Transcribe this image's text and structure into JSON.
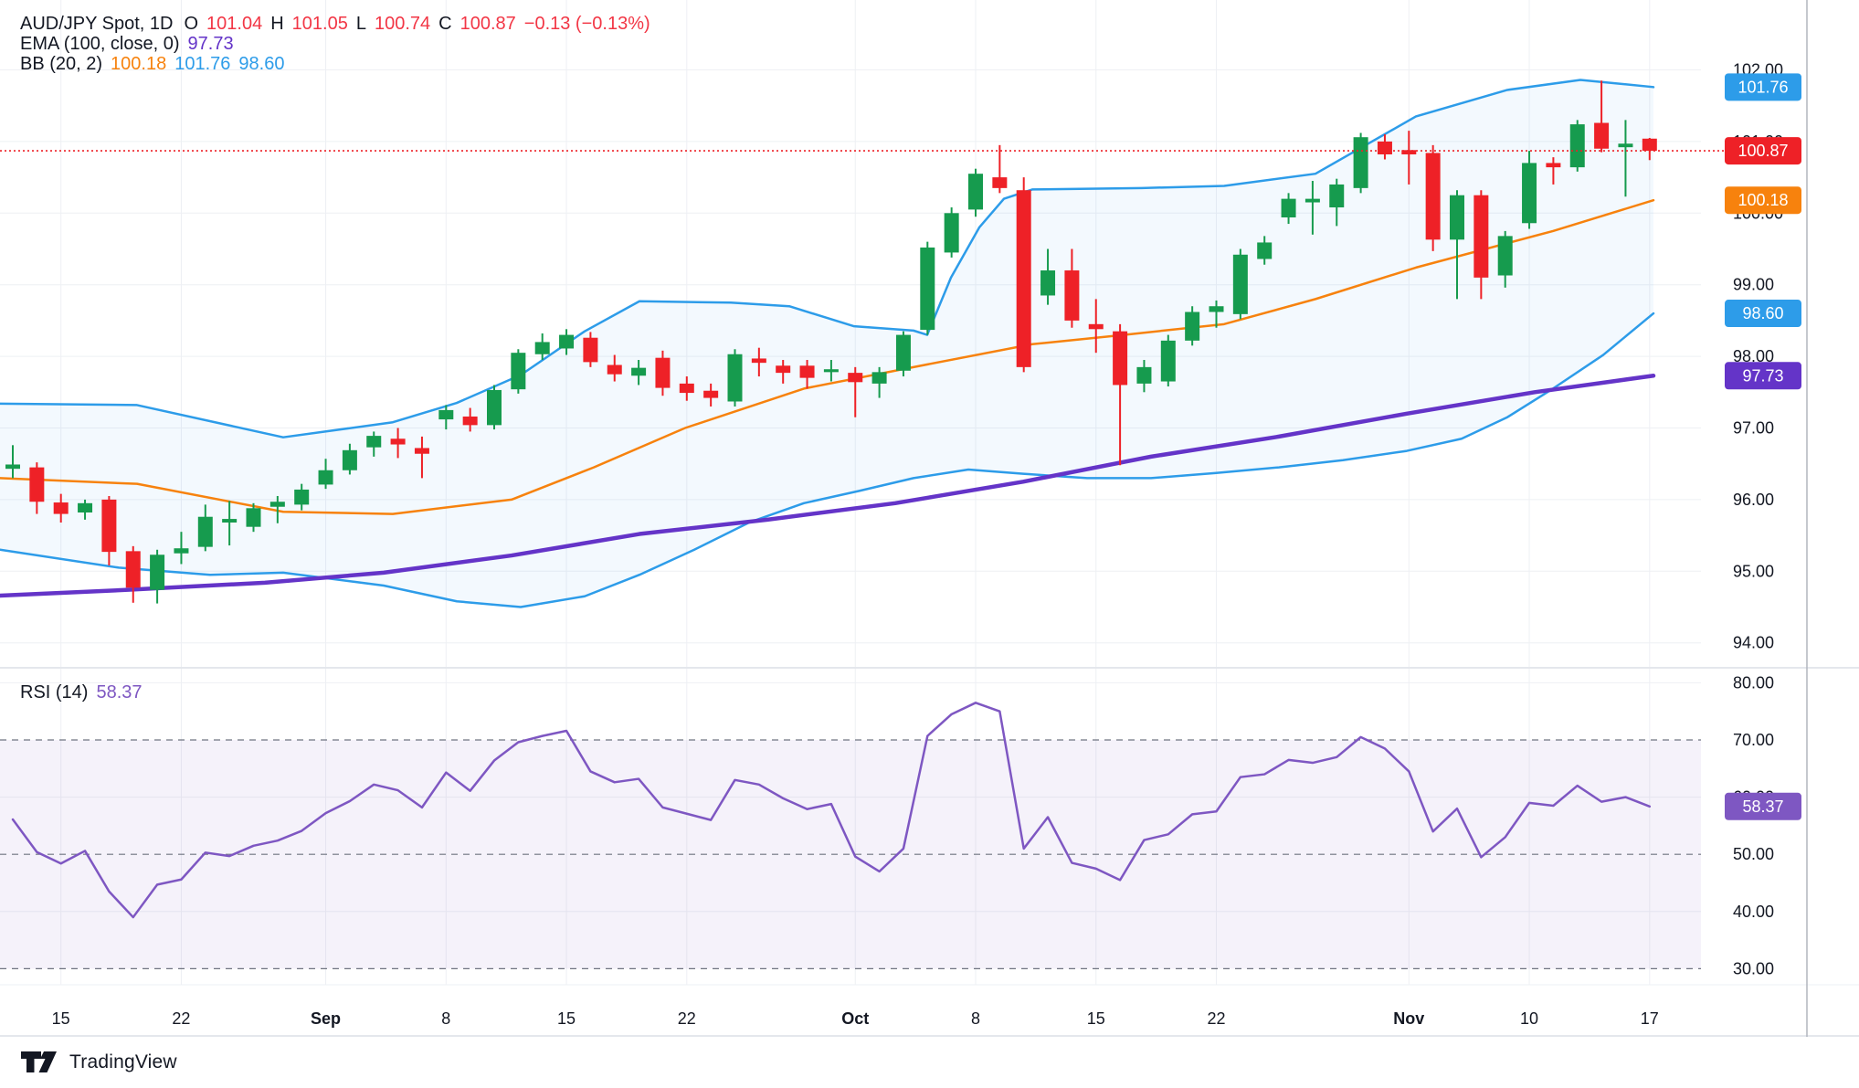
{
  "header": {
    "symbol_line": [
      {
        "text": "AUD/JPY Spot, 1D",
        "color": "#131722",
        "cls": "sym"
      },
      {
        "text": "O",
        "color": "#131722"
      },
      {
        "text": "101.04",
        "color": "#f23645"
      },
      {
        "text": "H",
        "color": "#131722"
      },
      {
        "text": "101.05",
        "color": "#f23645"
      },
      {
        "text": "L",
        "color": "#131722"
      },
      {
        "text": "100.74",
        "color": "#f23645"
      },
      {
        "text": "C",
        "color": "#131722"
      },
      {
        "text": "100.87",
        "color": "#f23645"
      },
      {
        "text": "−0.13 (−0.13%)",
        "color": "#f23645"
      }
    ],
    "ema_line": [
      {
        "text": "EMA (100, close, 0)",
        "color": "#131722"
      },
      {
        "text": "97.73",
        "color": "#6434c8"
      }
    ],
    "bb_line": [
      {
        "text": "BB (20, 2)",
        "color": "#131722"
      },
      {
        "text": "100.18",
        "color": "#f7820d"
      },
      {
        "text": "101.76",
        "color": "#2d9ce9"
      },
      {
        "text": "98.60",
        "color": "#2d9ce9"
      }
    ],
    "rsi_line": [
      {
        "text": "RSI (14)",
        "color": "#131722"
      },
      {
        "text": "58.37",
        "color": "#7e57c2"
      }
    ]
  },
  "price_axis": {
    "ticks": [
      {
        "label": "102.00",
        "value": 102
      },
      {
        "label": "101.00",
        "value": 101
      },
      {
        "label": "100.00",
        "value": 100
      },
      {
        "label": "99.00",
        "value": 99
      },
      {
        "label": "98.00",
        "value": 98
      },
      {
        "label": "97.00",
        "value": 97
      },
      {
        "label": "96.00",
        "value": 96
      },
      {
        "label": "95.00",
        "value": 95
      },
      {
        "label": "94.00",
        "value": 94
      }
    ],
    "badges": [
      {
        "label": "101.76",
        "value": 101.76,
        "color": "#2d9ce9",
        "name": "bb-upper-badge"
      },
      {
        "label": "100.87",
        "value": 100.87,
        "color": "#ee2127",
        "name": "last-price-badge"
      },
      {
        "label": "100.18",
        "value": 100.18,
        "color": "#f7820d",
        "name": "bb-middle-badge"
      },
      {
        "label": "98.60",
        "value": 98.6,
        "color": "#2d9ce9",
        "name": "bb-lower-badge"
      },
      {
        "label": "97.73",
        "value": 97.73,
        "color": "#6434c8",
        "name": "ema-badge"
      }
    ]
  },
  "rsi_axis": {
    "ticks": [
      {
        "label": "80.00",
        "value": 80
      },
      {
        "label": "70.00",
        "value": 70
      },
      {
        "label": "60.00",
        "value": 60
      },
      {
        "label": "50.00",
        "value": 50
      },
      {
        "label": "40.00",
        "value": 40
      },
      {
        "label": "30.00",
        "value": 30
      }
    ],
    "badge": {
      "label": "58.37",
      "value": 58.37,
      "color": "#7e57c2",
      "name": "rsi-badge"
    }
  },
  "time_axis": {
    "labels": [
      {
        "text": "15",
        "index": 2,
        "bold": false
      },
      {
        "text": "22",
        "index": 7,
        "bold": false
      },
      {
        "text": "Sep",
        "index": 13,
        "bold": true
      },
      {
        "text": "8",
        "index": 18,
        "bold": false
      },
      {
        "text": "15",
        "index": 23,
        "bold": false
      },
      {
        "text": "22",
        "index": 28,
        "bold": false
      },
      {
        "text": "Oct",
        "index": 35,
        "bold": true
      },
      {
        "text": "8",
        "index": 40,
        "bold": false
      },
      {
        "text": "15",
        "index": 45,
        "bold": false
      },
      {
        "text": "22",
        "index": 50,
        "bold": false
      },
      {
        "text": "Nov",
        "index": 58,
        "bold": true
      },
      {
        "text": "10",
        "index": 63,
        "bold": false
      },
      {
        "text": "17",
        "index": 68,
        "bold": false
      }
    ]
  },
  "footer": {
    "brand": "TradingView"
  },
  "colors": {
    "up": "#169b4e",
    "down": "#ee2127",
    "bb_line": "#2d9ce9",
    "bb_fill": "rgba(45,156,233,0.06)",
    "bb_mid": "#f7820d",
    "ema": "#6434c8",
    "rsi": "#7e57c2",
    "rsi_fill": "rgba(126,87,194,0.08)",
    "grid": "#eef0f4",
    "axis_text": "#131722",
    "dashed": "#6f7480",
    "price_line": "#ee2127",
    "separator": "#e4e7ec",
    "border": "#b2b5be"
  },
  "chart_data": {
    "type": "candlestick",
    "title": "AUD/JPY Spot, 1D",
    "ohlc_last": {
      "open": 101.04,
      "high": 101.05,
      "low": 100.74,
      "close": 100.87,
      "change": "-0.13 (-0.13%)"
    },
    "price_range": [
      94,
      102
    ],
    "rsi_range": [
      30,
      80
    ],
    "candles": [
      [
        96.43,
        96.76,
        96.3,
        96.49
      ],
      [
        96.45,
        96.52,
        95.8,
        95.97
      ],
      [
        95.96,
        96.08,
        95.68,
        95.8
      ],
      [
        95.82,
        96.0,
        95.72,
        95.95
      ],
      [
        96.0,
        96.05,
        95.08,
        95.27
      ],
      [
        95.28,
        95.35,
        94.56,
        94.77
      ],
      [
        94.74,
        95.3,
        94.55,
        95.23
      ],
      [
        95.25,
        95.55,
        95.1,
        95.32
      ],
      [
        95.34,
        95.93,
        95.28,
        95.76
      ],
      [
        95.68,
        95.98,
        95.36,
        95.73
      ],
      [
        95.62,
        95.95,
        95.55,
        95.88
      ],
      [
        95.9,
        96.05,
        95.67,
        95.97
      ],
      [
        95.93,
        96.22,
        95.85,
        96.14
      ],
      [
        96.21,
        96.57,
        96.15,
        96.41
      ],
      [
        96.41,
        96.78,
        96.35,
        96.69
      ],
      [
        96.73,
        96.95,
        96.6,
        96.89
      ],
      [
        96.85,
        97.0,
        96.58,
        96.77
      ],
      [
        96.72,
        96.88,
        96.3,
        96.64
      ],
      [
        97.12,
        97.32,
        96.98,
        97.25
      ],
      [
        97.16,
        97.28,
        96.95,
        97.04
      ],
      [
        97.04,
        97.6,
        96.98,
        97.53
      ],
      [
        97.54,
        98.1,
        97.48,
        98.05
      ],
      [
        98.03,
        98.32,
        97.95,
        98.2
      ],
      [
        98.11,
        98.38,
        98.02,
        98.3
      ],
      [
        98.26,
        98.34,
        97.85,
        97.92
      ],
      [
        97.88,
        98.02,
        97.65,
        97.75
      ],
      [
        97.73,
        97.95,
        97.6,
        97.84
      ],
      [
        97.98,
        98.08,
        97.45,
        97.56
      ],
      [
        97.62,
        97.72,
        97.38,
        97.49
      ],
      [
        97.52,
        97.62,
        97.3,
        97.42
      ],
      [
        97.37,
        98.1,
        97.3,
        98.03
      ],
      [
        97.97,
        98.12,
        97.72,
        97.91
      ],
      [
        97.87,
        97.95,
        97.62,
        97.77
      ],
      [
        97.87,
        97.95,
        97.55,
        97.7
      ],
      [
        97.78,
        97.95,
        97.65,
        97.82
      ],
      [
        97.77,
        97.85,
        97.15,
        97.64
      ],
      [
        97.62,
        97.85,
        97.42,
        97.78
      ],
      [
        97.8,
        98.35,
        97.72,
        98.3
      ],
      [
        98.37,
        99.6,
        98.3,
        99.52
      ],
      [
        99.45,
        100.08,
        99.38,
        100.0
      ],
      [
        100.05,
        100.62,
        99.95,
        100.55
      ],
      [
        100.5,
        100.95,
        100.28,
        100.35
      ],
      [
        100.32,
        100.5,
        97.78,
        97.85
      ],
      [
        98.85,
        99.5,
        98.72,
        99.2
      ],
      [
        99.2,
        99.5,
        98.4,
        98.5
      ],
      [
        98.45,
        98.8,
        98.05,
        98.38
      ],
      [
        98.35,
        98.45,
        96.48,
        97.6
      ],
      [
        97.62,
        97.95,
        97.5,
        97.85
      ],
      [
        97.65,
        98.3,
        97.58,
        98.22
      ],
      [
        98.22,
        98.7,
        98.15,
        98.62
      ],
      [
        98.62,
        98.78,
        98.4,
        98.7
      ],
      [
        98.59,
        99.5,
        98.52,
        99.42
      ],
      [
        99.36,
        99.68,
        99.28,
        99.59
      ],
      [
        99.94,
        100.28,
        99.85,
        100.2
      ],
      [
        100.15,
        100.45,
        99.7,
        100.2
      ],
      [
        100.08,
        100.48,
        99.82,
        100.4
      ],
      [
        100.35,
        101.12,
        100.28,
        101.06
      ],
      [
        101.0,
        101.1,
        100.75,
        100.82
      ],
      [
        100.88,
        101.15,
        100.4,
        100.82
      ],
      [
        100.84,
        100.95,
        99.47,
        99.63
      ],
      [
        99.63,
        100.32,
        98.8,
        100.25
      ],
      [
        100.25,
        100.32,
        98.8,
        99.1
      ],
      [
        99.13,
        99.75,
        98.96,
        99.68
      ],
      [
        99.86,
        100.87,
        99.78,
        100.7
      ],
      [
        100.7,
        100.78,
        100.4,
        100.64
      ],
      [
        100.64,
        101.3,
        100.58,
        101.24
      ],
      [
        101.26,
        101.85,
        100.85,
        100.9
      ],
      [
        100.92,
        101.3,
        100.23,
        100.97
      ],
      [
        101.04,
        101.05,
        100.74,
        100.87
      ]
    ],
    "last_price": 100.87,
    "indicators": {
      "ema100": [
        [
          0,
          94.66
        ],
        [
          140,
          94.74
        ],
        [
          290,
          94.84
        ],
        [
          420,
          94.98
        ],
        [
          560,
          95.22
        ],
        [
          700,
          95.52
        ],
        [
          840,
          95.72
        ],
        [
          980,
          95.95
        ],
        [
          1120,
          96.25
        ],
        [
          1260,
          96.6
        ],
        [
          1400,
          96.88
        ],
        [
          1540,
          97.2
        ],
        [
          1680,
          97.5
        ],
        [
          1810,
          97.73
        ]
      ],
      "bb_upper": [
        [
          0,
          97.34
        ],
        [
          150,
          97.32
        ],
        [
          310,
          96.87
        ],
        [
          430,
          97.08
        ],
        [
          500,
          97.35
        ],
        [
          570,
          97.74
        ],
        [
          640,
          98.35
        ],
        [
          700,
          98.77
        ],
        [
          800,
          98.75
        ],
        [
          864,
          98.7
        ],
        [
          935,
          98.42
        ],
        [
          1000,
          98.36
        ],
        [
          1015,
          98.3
        ],
        [
          1041,
          99.1
        ],
        [
          1072,
          99.8
        ],
        [
          1099,
          100.2
        ],
        [
          1130,
          100.33
        ],
        [
          1250,
          100.35
        ],
        [
          1340,
          100.38
        ],
        [
          1440,
          100.55
        ],
        [
          1550,
          101.35
        ],
        [
          1650,
          101.72
        ],
        [
          1730,
          101.86
        ],
        [
          1810,
          101.76
        ]
      ],
      "bb_middle": [
        [
          0,
          96.3
        ],
        [
          150,
          96.22
        ],
        [
          310,
          95.83
        ],
        [
          430,
          95.8
        ],
        [
          560,
          96.0
        ],
        [
          650,
          96.45
        ],
        [
          750,
          97.0
        ],
        [
          880,
          97.55
        ],
        [
          1000,
          97.85
        ],
        [
          1130,
          98.17
        ],
        [
          1230,
          98.3
        ],
        [
          1340,
          98.45
        ],
        [
          1440,
          98.8
        ],
        [
          1550,
          99.24
        ],
        [
          1700,
          99.75
        ],
        [
          1810,
          100.18
        ]
      ],
      "bb_lower": [
        [
          0,
          95.3
        ],
        [
          130,
          95.05
        ],
        [
          230,
          94.95
        ],
        [
          310,
          94.98
        ],
        [
          420,
          94.8
        ],
        [
          500,
          94.58
        ],
        [
          570,
          94.5
        ],
        [
          640,
          94.65
        ],
        [
          700,
          94.95
        ],
        [
          760,
          95.3
        ],
        [
          820,
          95.68
        ],
        [
          880,
          95.95
        ],
        [
          940,
          96.12
        ],
        [
          1000,
          96.3
        ],
        [
          1060,
          96.42
        ],
        [
          1120,
          96.36
        ],
        [
          1190,
          96.3
        ],
        [
          1260,
          96.3
        ],
        [
          1330,
          96.37
        ],
        [
          1400,
          96.45
        ],
        [
          1470,
          96.55
        ],
        [
          1540,
          96.68
        ],
        [
          1600,
          96.85
        ],
        [
          1650,
          97.15
        ],
        [
          1700,
          97.55
        ],
        [
          1755,
          98.02
        ],
        [
          1810,
          98.6
        ]
      ],
      "rsi14": [
        56.1,
        50.4,
        48.4,
        50.6,
        43.5,
        39.0,
        44.7,
        45.6,
        50.3,
        49.7,
        51.5,
        52.4,
        54.1,
        57.2,
        59.3,
        62.2,
        61.2,
        58.2,
        64.3,
        61.1,
        66.4,
        69.6,
        70.7,
        71.6,
        64.5,
        62.6,
        63.2,
        58.2,
        57.1,
        56.0,
        63.0,
        62.2,
        59.8,
        57.9,
        58.8,
        49.6,
        47.0,
        51.0,
        70.7,
        74.5,
        76.5,
        75.0,
        51.0,
        56.5,
        48.5,
        47.5,
        45.5,
        52.5,
        53.5,
        57.0,
        57.5,
        63.5,
        64.0,
        66.5,
        66.0,
        67.0,
        70.5,
        68.5,
        64.5,
        54.0,
        58.0,
        49.5,
        53.0,
        59.0,
        58.5,
        62.0,
        59.2,
        60.0,
        58.37
      ],
      "rsi_levels": {
        "overbought": 70,
        "middle": 50,
        "oversold": 30
      },
      "rsi_value": 58.37
    }
  }
}
